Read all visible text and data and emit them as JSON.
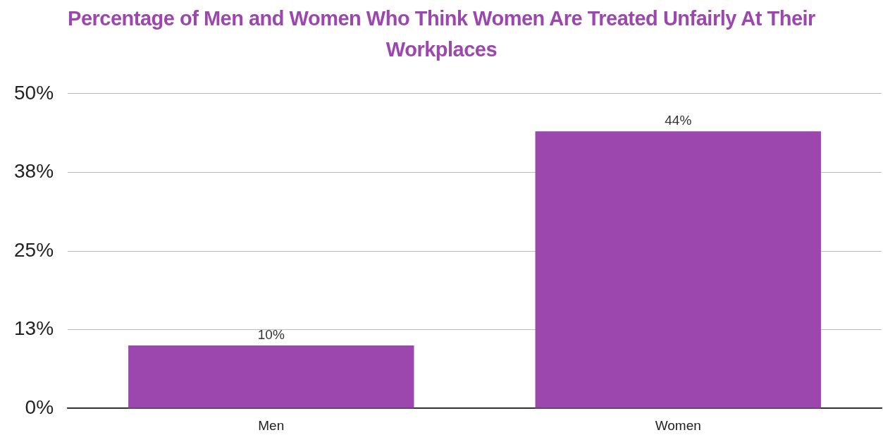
{
  "chart_data": {
    "type": "bar",
    "title": "Percentage of Men and Women Who Think Women Are Treated Unfairly At Their Workplaces",
    "categories": [
      "Men",
      "Women"
    ],
    "values": [
      10,
      44
    ],
    "color": "#9c47ae",
    "ylim": [
      0,
      50
    ],
    "yticks": [
      {
        "value": 0,
        "label": "0%"
      },
      {
        "value": 12.5,
        "label": "13%"
      },
      {
        "value": 25,
        "label": "25%"
      },
      {
        "value": 37.5,
        "label": "38%"
      },
      {
        "value": 50,
        "label": "50%"
      }
    ],
    "value_labels": [
      "10%",
      "44%"
    ],
    "grid": "y",
    "legend": false
  }
}
